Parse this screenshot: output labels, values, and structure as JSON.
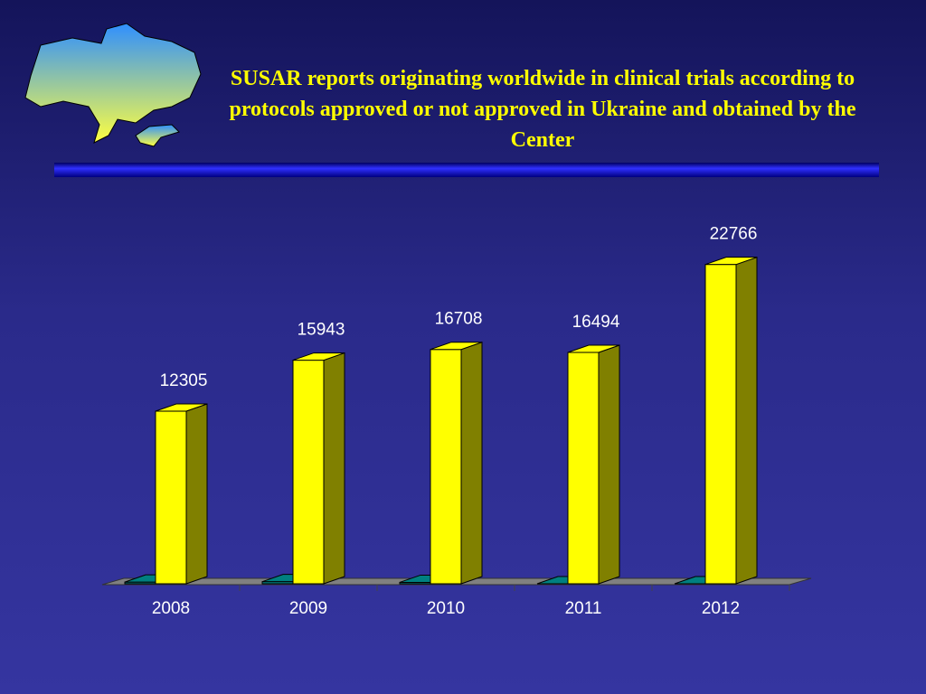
{
  "chart_data": {
    "type": "bar3d",
    "title": "SUSAR reports originating worldwide in clinical trials according to protocols approved or not approved in Ukraine and obtained by the Center",
    "categories": [
      "2008",
      "2009",
      "2010",
      "2011",
      "2012"
    ],
    "series": [
      {
        "color": "#008080",
        "values": [
          120,
          150,
          100,
          0,
          0
        ]
      },
      {
        "color": "#ffff00",
        "values": [
          12305,
          15943,
          16708,
          16494,
          22766
        ]
      }
    ],
    "ylim": [
      0,
      25000
    ]
  }
}
